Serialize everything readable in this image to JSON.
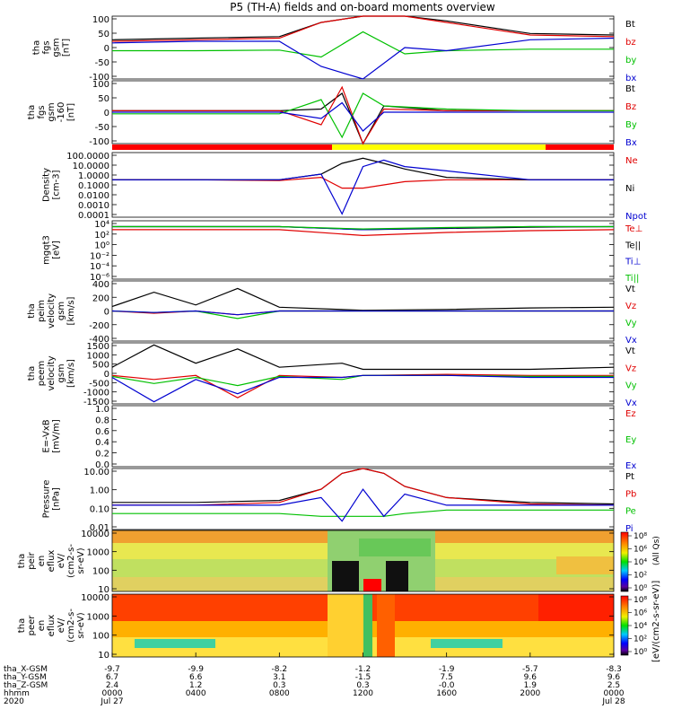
{
  "title": "P5 (TH-A) fields and on-board moments overview",
  "panels": [
    {
      "id": "fgs",
      "ylabel": [
        "tha",
        "fgs",
        "gsm",
        "[nT]"
      ],
      "yticks": [
        "100",
        "50",
        "0",
        "-50",
        "-100"
      ],
      "legend": [
        [
          "Bt",
          "#000000"
        ],
        [
          "bz",
          "#e00000"
        ],
        [
          "by",
          "#00c000"
        ],
        [
          "bx",
          "#0000d0"
        ]
      ]
    },
    {
      "id": "fgs2",
      "ylabel": [
        "tha",
        "fgs",
        "gsm",
        "-160",
        "[nT]"
      ],
      "yticks": [
        "100",
        "50",
        "0",
        "-50",
        "-100"
      ],
      "legend": [
        [
          "Bt",
          "#000000"
        ],
        [
          "Bz",
          "#e00000"
        ],
        [
          "By",
          "#00c000"
        ],
        [
          "Bx",
          "#0000d0"
        ]
      ]
    },
    {
      "id": "density",
      "ylabel": [
        "Density",
        "[cm-3]"
      ],
      "yticks": [
        "100.0000",
        "10.0000",
        "1.0000",
        "0.1000",
        "0.0100",
        "0.0010",
        "0.0001"
      ],
      "legend": [
        [
          "Ne",
          "#e00000"
        ],
        [
          "Ni",
          "#000000"
        ],
        [
          "Npot",
          "#0000d0"
        ]
      ]
    },
    {
      "id": "temp",
      "ylabel": [
        "mgqt3",
        "[eV]"
      ],
      "yticks": [
        "10⁴",
        "10²",
        "10⁰",
        "10⁻²",
        "10⁻⁴",
        "10⁻⁶"
      ],
      "legend": [
        [
          "Te⊥",
          "#e00000"
        ],
        [
          "Te||",
          "#000000"
        ],
        [
          "Ti⊥",
          "#0000d0"
        ],
        [
          "Ti||",
          "#00c000"
        ]
      ]
    },
    {
      "id": "vi",
      "ylabel": [
        "tha",
        "peim",
        "velocity",
        "gsm",
        "[km/s]"
      ],
      "yticks": [
        "400",
        "200",
        "0",
        "-200",
        "-400"
      ],
      "legend": [
        [
          "Vt",
          "#000000"
        ],
        [
          "Vz",
          "#e00000"
        ],
        [
          "Vy",
          "#00c000"
        ],
        [
          "Vx",
          "#0000d0"
        ]
      ]
    },
    {
      "id": "ve",
      "ylabel": [
        "tha",
        "peem",
        "velocity",
        "gsm",
        "[km/s]"
      ],
      "yticks": [
        "1500",
        "1000",
        "500",
        "0",
        "-500",
        "-1000",
        "-1500"
      ],
      "legend": [
        [
          "Vt",
          "#000000"
        ],
        [
          "Vz",
          "#e00000"
        ],
        [
          "Vy",
          "#00c000"
        ],
        [
          "Vx",
          "#0000d0"
        ]
      ]
    },
    {
      "id": "efield",
      "ylabel": [
        "E=-VxB",
        "[mV/m]"
      ],
      "yticks": [
        "1.0",
        "0.8",
        "0.6",
        "0.4",
        "0.2",
        "0.0"
      ],
      "legend": [
        [
          "Ez",
          "#e00000"
        ],
        [
          "Ey",
          "#00c000"
        ],
        [
          "Ex",
          "#0000d0"
        ]
      ]
    },
    {
      "id": "pressure",
      "ylabel": [
        "Pressure",
        "[nPa]"
      ],
      "yticks": [
        "10.00",
        "1.00",
        "0.10",
        "0.01"
      ],
      "legend": [
        [
          "Pt",
          "#000000"
        ],
        [
          "Pb",
          "#e00000"
        ],
        [
          "Pe",
          "#00c000"
        ],
        [
          "Pi",
          "#0000d0"
        ]
      ]
    },
    {
      "id": "ispec",
      "ylabel": [
        "tha",
        "peir",
        "en",
        "eflux",
        "eV/",
        "(cm2-s-",
        "sr-eV)"
      ],
      "yticks": [
        "10000",
        "1000",
        "100",
        "10"
      ],
      "legend": []
    },
    {
      "id": "espec",
      "ylabel": [
        "tha",
        "peer",
        "en",
        "eflux",
        "eV/",
        "(cm2-s-",
        "sr-eV)"
      ],
      "yticks": [
        "10000",
        "1000",
        "100",
        "10"
      ],
      "legend": []
    }
  ],
  "colorbars": {
    "title": "[eV/(cm2-s-sr-eV)]",
    "extra": "(All Qs)",
    "cb1_ticks": [
      "10⁸",
      "10⁶",
      "10⁴",
      "10²",
      "10⁰"
    ],
    "cb2_ticks": [
      "10⁸",
      "10⁶",
      "10⁴",
      "10²",
      "10⁰"
    ]
  },
  "xaxis": {
    "rows": [
      {
        "label": "tha_X-GSM",
        "values": [
          "-9.7",
          "-9.9",
          "-8.2",
          "-1.2",
          "-1.9",
          "-5.7",
          "-8.3"
        ]
      },
      {
        "label": "tha_Y-GSM",
        "values": [
          "6.7",
          "6.6",
          "3.1",
          "-1.5",
          "7.5",
          "9.6",
          "9.6"
        ]
      },
      {
        "label": "tha_Z-GSM",
        "values": [
          "2.4",
          "1.2",
          "0.3",
          "0.3",
          "-0.0",
          "1.9",
          "2.5"
        ]
      },
      {
        "label": "hhmm",
        "values": [
          "0000",
          "0400",
          "0800",
          "1200",
          "1600",
          "2000",
          "0000"
        ]
      },
      {
        "label": "2020",
        "values": [
          "Jul 27",
          "",
          "",
          "",
          "",
          "",
          "Jul 28"
        ]
      }
    ]
  },
  "chart_data": [
    {
      "type": "line",
      "title": "P5 (TH-A) fields and on-board moments overview",
      "ylabel": "tha fgs gsm [nT]",
      "ylim": [
        -100,
        100
      ],
      "x_hours": [
        0,
        4,
        8,
        10,
        12,
        14,
        16,
        20,
        24
      ],
      "series": [
        {
          "name": "Bt",
          "values": [
            25,
            30,
            35,
            80,
            100,
            100,
            85,
            45,
            40
          ]
        },
        {
          "name": "bz",
          "values": [
            20,
            25,
            30,
            80,
            100,
            100,
            80,
            40,
            35
          ]
        },
        {
          "name": "by",
          "values": [
            -10,
            -10,
            -8,
            -30,
            50,
            -20,
            -10,
            -5,
            -5
          ]
        },
        {
          "name": "bx",
          "values": [
            15,
            20,
            20,
            -60,
            -100,
            0,
            -10,
            25,
            30
          ]
        }
      ]
    },
    {
      "type": "line",
      "ylabel": "tha fgs gsm -160 [nT]",
      "ylim": [
        -100,
        100
      ],
      "x_hours": [
        0,
        4,
        8,
        10,
        11,
        12,
        13,
        16,
        20,
        24
      ],
      "series": [
        {
          "name": "Bt",
          "values": [
            5,
            5,
            5,
            10,
            60,
            -120,
            20,
            5,
            5,
            5
          ]
        },
        {
          "name": "Bz",
          "values": [
            5,
            5,
            5,
            -40,
            80,
            -100,
            10,
            5,
            5,
            5
          ]
        },
        {
          "name": "By",
          "values": [
            -5,
            -5,
            -5,
            40,
            -80,
            60,
            20,
            10,
            5,
            5
          ]
        },
        {
          "name": "Bx",
          "values": [
            0,
            0,
            0,
            -20,
            30,
            -60,
            0,
            0,
            0,
            0
          ]
        }
      ]
    },
    {
      "type": "line",
      "ylabel": "Density [cm-3]",
      "yscale": "log",
      "ylim": [
        0.0001,
        100
      ],
      "x_hours": [
        0,
        4,
        8,
        10,
        11,
        12,
        13,
        14,
        16,
        20,
        24
      ],
      "series": [
        {
          "name": "Ne",
          "values": [
            0.3,
            0.3,
            0.25,
            0.5,
            0.05,
            0.05,
            0.1,
            0.2,
            0.3,
            0.3,
            0.3
          ]
        },
        {
          "name": "Ni",
          "values": [
            0.3,
            0.3,
            0.3,
            1,
            10,
            30,
            10,
            3,
            0.5,
            0.3,
            0.3
          ]
        },
        {
          "name": "Npot",
          "values": [
            0.3,
            0.3,
            0.3,
            1,
            0.0002,
            5,
            20,
            5,
            2,
            0.3,
            0.3
          ]
        }
      ]
    },
    {
      "type": "line",
      "ylabel": "mgqt3 [eV]",
      "yscale": "log",
      "ylim": [
        1e-06,
        10000
      ],
      "x_hours": [
        0,
        4,
        8,
        12,
        16,
        20,
        24
      ],
      "series": [
        {
          "name": "Te⊥",
          "values": [
            300,
            300,
            300,
            30,
            100,
            200,
            300
          ]
        },
        {
          "name": "Te||",
          "values": [
            1000,
            1000,
            1000,
            300,
            500,
            800,
            1000
          ]
        },
        {
          "name": "Ti⊥",
          "values": [
            1000,
            1000,
            1000,
            300,
            600,
            1000,
            1000
          ]
        },
        {
          "name": "Ti||",
          "values": [
            1000,
            1000,
            1000,
            400,
            700,
            1000,
            1000
          ]
        }
      ]
    },
    {
      "type": "line",
      "ylabel": "tha peim velocity gsm [km/s]",
      "ylim": [
        -400,
        400
      ],
      "x_hours": [
        0,
        2,
        4,
        6,
        8,
        12,
        16,
        20,
        24
      ],
      "series": [
        {
          "name": "Vt",
          "values": [
            60,
            250,
            80,
            300,
            50,
            10,
            20,
            40,
            50
          ]
        },
        {
          "name": "Vz",
          "values": [
            0,
            -30,
            0,
            -50,
            0,
            0,
            0,
            0,
            0
          ]
        },
        {
          "name": "Vy",
          "values": [
            0,
            -20,
            0,
            -100,
            0,
            0,
            0,
            0,
            0
          ]
        },
        {
          "name": "Vx",
          "values": [
            0,
            -20,
            0,
            -50,
            0,
            0,
            0,
            0,
            0
          ]
        }
      ]
    },
    {
      "type": "line",
      "ylabel": "tha peem velocity gsm [km/s]",
      "ylim": [
        -1500,
        1500
      ],
      "x_hours": [
        0,
        2,
        4,
        6,
        8,
        11,
        12,
        16,
        20,
        24
      ],
      "series": [
        {
          "name": "Vt",
          "values": [
            300,
            1400,
            500,
            1200,
            300,
            500,
            200,
            200,
            200,
            300
          ]
        },
        {
          "name": "Vz",
          "values": [
            -100,
            -300,
            -100,
            -1200,
            -100,
            -200,
            -100,
            -50,
            -100,
            -100
          ]
        },
        {
          "name": "Vy",
          "values": [
            -150,
            -500,
            -200,
            -600,
            -150,
            -300,
            -100,
            -100,
            -150,
            -150
          ]
        },
        {
          "name": "Vx",
          "values": [
            -200,
            -1400,
            -300,
            -1000,
            -200,
            -200,
            -100,
            -100,
            -200,
            -200
          ]
        }
      ]
    },
    {
      "type": "line",
      "ylabel": "E=-VxB [mV/m]",
      "ylim": [
        0,
        1
      ],
      "series": [
        {
          "name": "Ez",
          "values": []
        },
        {
          "name": "Ey",
          "values": []
        },
        {
          "name": "Ex",
          "values": []
        }
      ]
    },
    {
      "type": "line",
      "ylabel": "Pressure [nPa]",
      "yscale": "log",
      "ylim": [
        0.003,
        20
      ],
      "x_hours": [
        0,
        4,
        8,
        10,
        11,
        12,
        13,
        14,
        16,
        20,
        24
      ],
      "series": [
        {
          "name": "Pt",
          "values": [
            0.15,
            0.15,
            0.2,
            1,
            10,
            20,
            10,
            1.5,
            0.3,
            0.15,
            0.12
          ]
        },
        {
          "name": "Pb",
          "values": [
            0.1,
            0.1,
            0.15,
            1,
            10,
            20,
            10,
            1.5,
            0.3,
            0.12,
            0.1
          ]
        },
        {
          "name": "Pe",
          "values": [
            0.03,
            0.03,
            0.03,
            0.02,
            0.02,
            0.02,
            0.02,
            0.03,
            0.05,
            0.05,
            0.05
          ]
        },
        {
          "name": "Pi",
          "values": [
            0.1,
            0.1,
            0.1,
            0.3,
            0.01,
            1,
            0.02,
            0.5,
            0.1,
            0.1,
            0.1
          ]
        }
      ]
    },
    {
      "type": "heatmap",
      "ylabel": "tha peir en eflux eV/(cm2-s-sr-eV)",
      "yscale": "log",
      "ylim": [
        5,
        25000
      ]
    },
    {
      "type": "heatmap",
      "ylabel": "tha peer en eflux eV/(cm2-s-sr-eV)",
      "yscale": "log",
      "ylim": [
        5,
        25000
      ]
    }
  ]
}
